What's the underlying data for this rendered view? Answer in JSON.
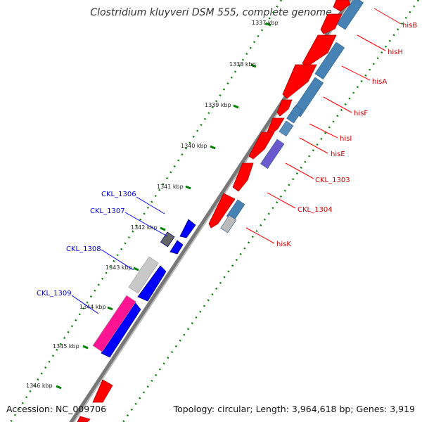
{
  "title": "Clostridium kluyveri DSM 555, complete genome",
  "footer": {
    "accession": "Accession: NC_009706",
    "summary": "Topology: circular; Length: 3,964,618 bp; Genes: 3,919"
  },
  "colors": {
    "backbone": "#777777",
    "forward_cds": "#ff0000",
    "reverse_cds": "#0000ff",
    "blast_light": "#4682b4",
    "label_forward": "#cc0000",
    "label_reverse": "#0000cc",
    "tick": "#008000"
  },
  "ticks": [
    "1337 kbp",
    "1338 kbp",
    "1339 kbp",
    "1340 kbp",
    "1341 kbp",
    "1342 kbp",
    "1343 kbp",
    "1344 kbp",
    "1345 kbp",
    "1346 kbp"
  ],
  "forward_genes": [
    {
      "label": "hisB"
    },
    {
      "label": "hisH"
    },
    {
      "label": "hisA"
    },
    {
      "label": "hisF"
    },
    {
      "label": "hisI"
    },
    {
      "label": "hisE"
    },
    {
      "label": "CKL_1303"
    },
    {
      "label": "CKL_1304"
    },
    {
      "label": "hisK"
    }
  ],
  "reverse_genes": [
    {
      "label": "CKL_1306"
    },
    {
      "label": "CKL_1307"
    },
    {
      "label": "CKL_1308"
    },
    {
      "label": "CKL_1309"
    }
  ]
}
